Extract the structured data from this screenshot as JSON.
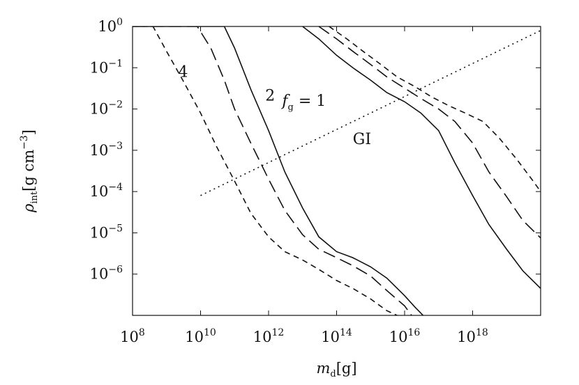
{
  "chart_data": {
    "type": "line",
    "title": "",
    "xscale": "log",
    "yscale": "log",
    "xlim": [
      100000000.0,
      1e+20
    ],
    "ylim": [
      1e-07,
      1
    ],
    "x_ticks": [
      {
        "base": "10",
        "exp": "8",
        "value": 100000000.0
      },
      {
        "base": "10",
        "exp": "10",
        "value": 10000000000.0
      },
      {
        "base": "10",
        "exp": "12",
        "value": 1000000000000.0
      },
      {
        "base": "10",
        "exp": "14",
        "value": 100000000000000.0
      },
      {
        "base": "10",
        "exp": "16",
        "value": 1e+16
      },
      {
        "base": "10",
        "exp": "18",
        "value": 1e+18
      }
    ],
    "y_ticks": [
      {
        "base": "10",
        "exp": "0",
        "value": 1
      },
      {
        "base": "10",
        "exp": "−1",
        "value": 0.1
      },
      {
        "base": "10",
        "exp": "−2",
        "value": 0.01
      },
      {
        "base": "10",
        "exp": "−3",
        "value": 0.001
      },
      {
        "base": "10",
        "exp": "−4",
        "value": 0.0001
      },
      {
        "base": "10",
        "exp": "−5",
        "value": 1e-05
      },
      {
        "base": "10",
        "exp": "−6",
        "value": 1e-06
      }
    ],
    "xlabel": {
      "sym": "m",
      "sub": "d",
      "unit": "[g]"
    },
    "ylabel": {
      "sym": "ρ",
      "sub": "int",
      "unit": "[g cm",
      "exp": "−3",
      "close": "]"
    },
    "grid": false,
    "annotations": {
      "fg_sym": "f",
      "fg_sub": "g",
      "fg_value": " = 1",
      "label_2": "2",
      "label_4": "4",
      "region": "GI"
    },
    "series": [
      {
        "style": "solid",
        "group": "left",
        "x": [
          100000000.0,
          10000000000.0,
          50000000000.0,
          100000000000.0,
          300000000000.0,
          1000000000000.0,
          3000000000000.0,
          10000000000000.0,
          30000000000000.0,
          100000000000000.0,
          300000000000000.0,
          1000000000000000.0,
          3000000000000000.0,
          1e+16,
          2e+16,
          3.5e+16
        ],
        "y": [
          1,
          1,
          1,
          0.3,
          0.03,
          0.003,
          0.0003,
          4e-05,
          8e-06,
          3.5e-06,
          2.5e-06,
          1.5e-06,
          8e-07,
          3e-07,
          1.6e-07,
          1e-07
        ]
      },
      {
        "style": "long-dash",
        "group": "left",
        "x": [
          100000000.0,
          8000000000.0,
          20000000000.0,
          50000000000.0,
          100000000000.0,
          300000000000.0,
          1000000000000.0,
          3000000000000.0,
          10000000000000.0,
          30000000000000.0,
          100000000000000.0,
          300000000000000.0,
          1000000000000000.0,
          3000000000000000.0,
          1e+16,
          1.6e+16
        ],
        "y": [
          1,
          1,
          0.3,
          0.05,
          0.01,
          0.0015,
          0.0002,
          3.5e-05,
          9e-06,
          4e-06,
          2.5e-06,
          1.6e-06,
          9e-07,
          4e-07,
          1.7e-07,
          1e-07
        ]
      },
      {
        "style": "short-dash",
        "group": "left",
        "x": [
          100000000.0,
          400000000.0,
          1000000000.0,
          3000000000.0,
          10000000000.0,
          30000000000.0,
          100000000000.0,
          300000000000.0,
          1000000000000.0,
          3000000000000.0,
          10000000000000.0,
          30000000000000.0,
          100000000000000.0,
          300000000000000.0,
          1000000000000000.0,
          3000000000000000.0,
          6000000000000000.0
        ],
        "y": [
          1,
          1,
          0.25,
          0.05,
          0.008,
          0.0012,
          0.00018,
          3e-05,
          8e-06,
          3.5e-06,
          2.2e-06,
          1.3e-06,
          7e-07,
          4.5e-07,
          2.5e-07,
          1.3e-07,
          1e-07
        ]
      },
      {
        "style": "solid",
        "group": "right",
        "x": [
          10000000000000.0,
          30000000000000.0,
          100000000000000.0,
          300000000000000.0,
          1000000000000000.0,
          3000000000000000.0,
          1e+16,
          3e+16,
          1e+17,
          3e+17,
          1e+18,
          3e+18,
          1e+19,
          3e+19,
          1e+20
        ],
        "y": [
          1,
          0.5,
          0.2,
          0.1,
          0.05,
          0.025,
          0.015,
          0.008,
          0.003,
          0.0005,
          8e-05,
          1.6e-05,
          4e-06,
          1.2e-06,
          4.5e-07
        ]
      },
      {
        "style": "long-dash",
        "group": "right",
        "x": [
          30000000000000.0,
          100000000000000.0,
          300000000000000.0,
          1000000000000000.0,
          3000000000000000.0,
          1e+16,
          3e+16,
          1e+17,
          3e+17,
          1e+18,
          3e+18,
          1e+19,
          3e+19,
          1e+20
        ],
        "y": [
          1,
          0.5,
          0.25,
          0.12,
          0.06,
          0.032,
          0.018,
          0.01,
          0.005,
          0.0015,
          0.0003,
          7.5e-05,
          2e-05,
          7.5e-06
        ]
      },
      {
        "style": "short-dash",
        "group": "right",
        "x": [
          60000000000000.0,
          200000000000000.0,
          600000000000000.0,
          2000000000000000.0,
          6000000000000000.0,
          2e+16,
          6e+16,
          2e+17,
          6e+17,
          2e+18,
          6e+18,
          2e+19,
          6e+19,
          1e+20
        ],
        "y": [
          1,
          0.5,
          0.25,
          0.12,
          0.06,
          0.035,
          0.02,
          0.012,
          0.008,
          0.005,
          0.002,
          0.0006,
          0.00018,
          0.0001
        ]
      },
      {
        "style": "dotted",
        "group": "stability",
        "x": [
          10000000000.0,
          1e+20
        ],
        "y": [
          8e-05,
          0.8
        ]
      }
    ]
  }
}
